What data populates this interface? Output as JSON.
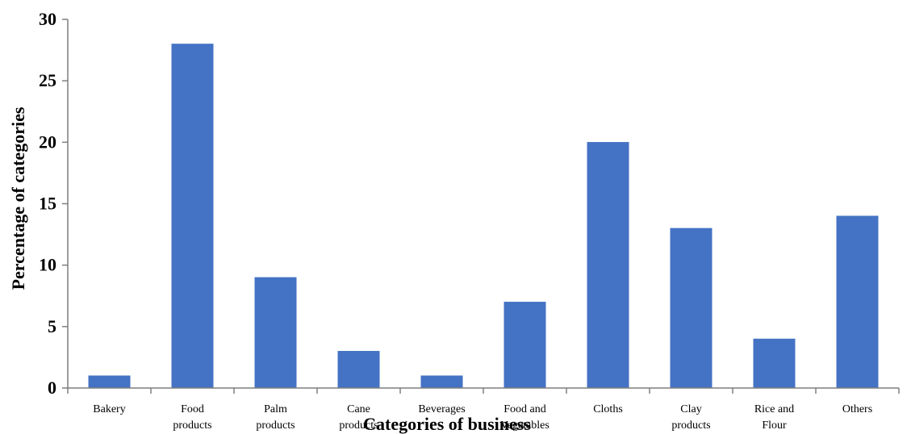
{
  "chart_data": {
    "type": "bar",
    "categories": [
      [
        "Bakery"
      ],
      [
        "Food",
        "products"
      ],
      [
        "Palm",
        "products"
      ],
      [
        "Cane",
        "products"
      ],
      [
        "Beverages"
      ],
      [
        "Food and",
        "Vegetables"
      ],
      [
        "Cloths"
      ],
      [
        "Clay",
        "products"
      ],
      [
        "Rice and",
        "Flour"
      ],
      [
        "Others"
      ]
    ],
    "values": [
      1,
      28,
      9,
      3,
      1,
      7,
      20,
      13,
      4,
      14
    ],
    "xlabel": "Categories of business",
    "ylabel": "Percentage of categories",
    "ylim": [
      0,
      30
    ],
    "yticks": [
      "0",
      "5",
      "10",
      "15",
      "20",
      "25",
      "30"
    ],
    "bar_color": "#4472c4",
    "grid": false,
    "legend": "none"
  }
}
